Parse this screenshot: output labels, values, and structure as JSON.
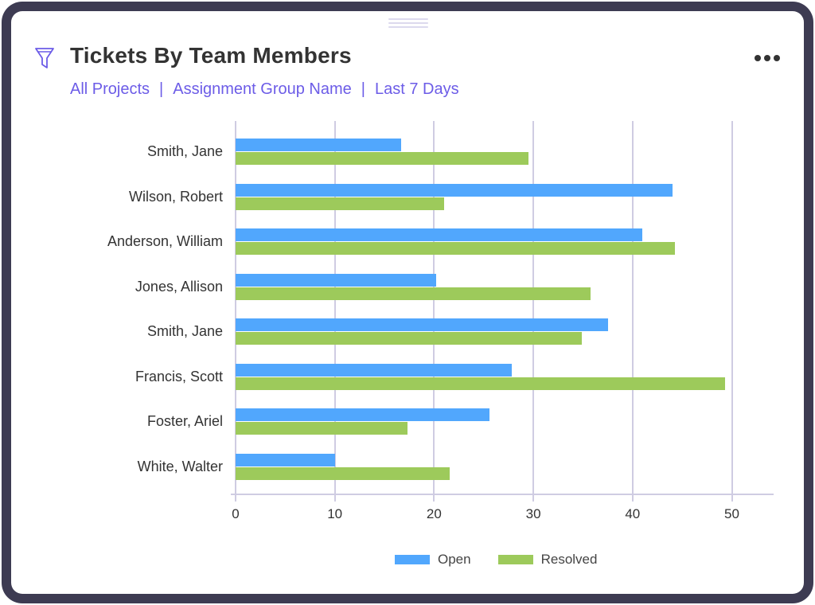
{
  "widget": {
    "title": "Tickets By Team Members",
    "filter_icon": "funnel-icon",
    "menu_icon": "more-horizontal-icon",
    "drag_handle_icon": "drag-handle-icon",
    "breadcrumbs": [
      {
        "label": "All Projects"
      },
      {
        "label": "Assignment Group Name"
      },
      {
        "label": "Last 7 Days"
      }
    ],
    "separator": "|"
  },
  "colors": {
    "open": "#51a7fd",
    "resolved": "#9dca5b",
    "accent": "#6c5ce7",
    "frame": "#3d3b52",
    "grid": "#cfcce2"
  },
  "chart_data": {
    "type": "bar",
    "orientation": "horizontal",
    "title": "Tickets By Team Members",
    "xlabel": "",
    "ylabel": "",
    "categories": [
      "Smith, Jane",
      "Wilson, Robert",
      "Anderson, William",
      "Jones, Allison",
      "Smith, Jane",
      "Francis, Scott",
      "Foster, Ariel",
      "White, Walter"
    ],
    "series": [
      {
        "name": "Open",
        "color": "#51a7fd",
        "values": [
          16.7,
          44.0,
          41.0,
          20.2,
          37.5,
          27.8,
          25.6,
          10.0
        ]
      },
      {
        "name": "Resolved",
        "color": "#9dca5b",
        "values": [
          29.5,
          21.0,
          44.3,
          35.8,
          34.9,
          49.3,
          17.3,
          21.6
        ]
      }
    ],
    "xticks": [
      0,
      10,
      20,
      30,
      40,
      50
    ],
    "xlim": [
      0,
      54
    ],
    "grid": true,
    "legend_position": "bottom"
  }
}
